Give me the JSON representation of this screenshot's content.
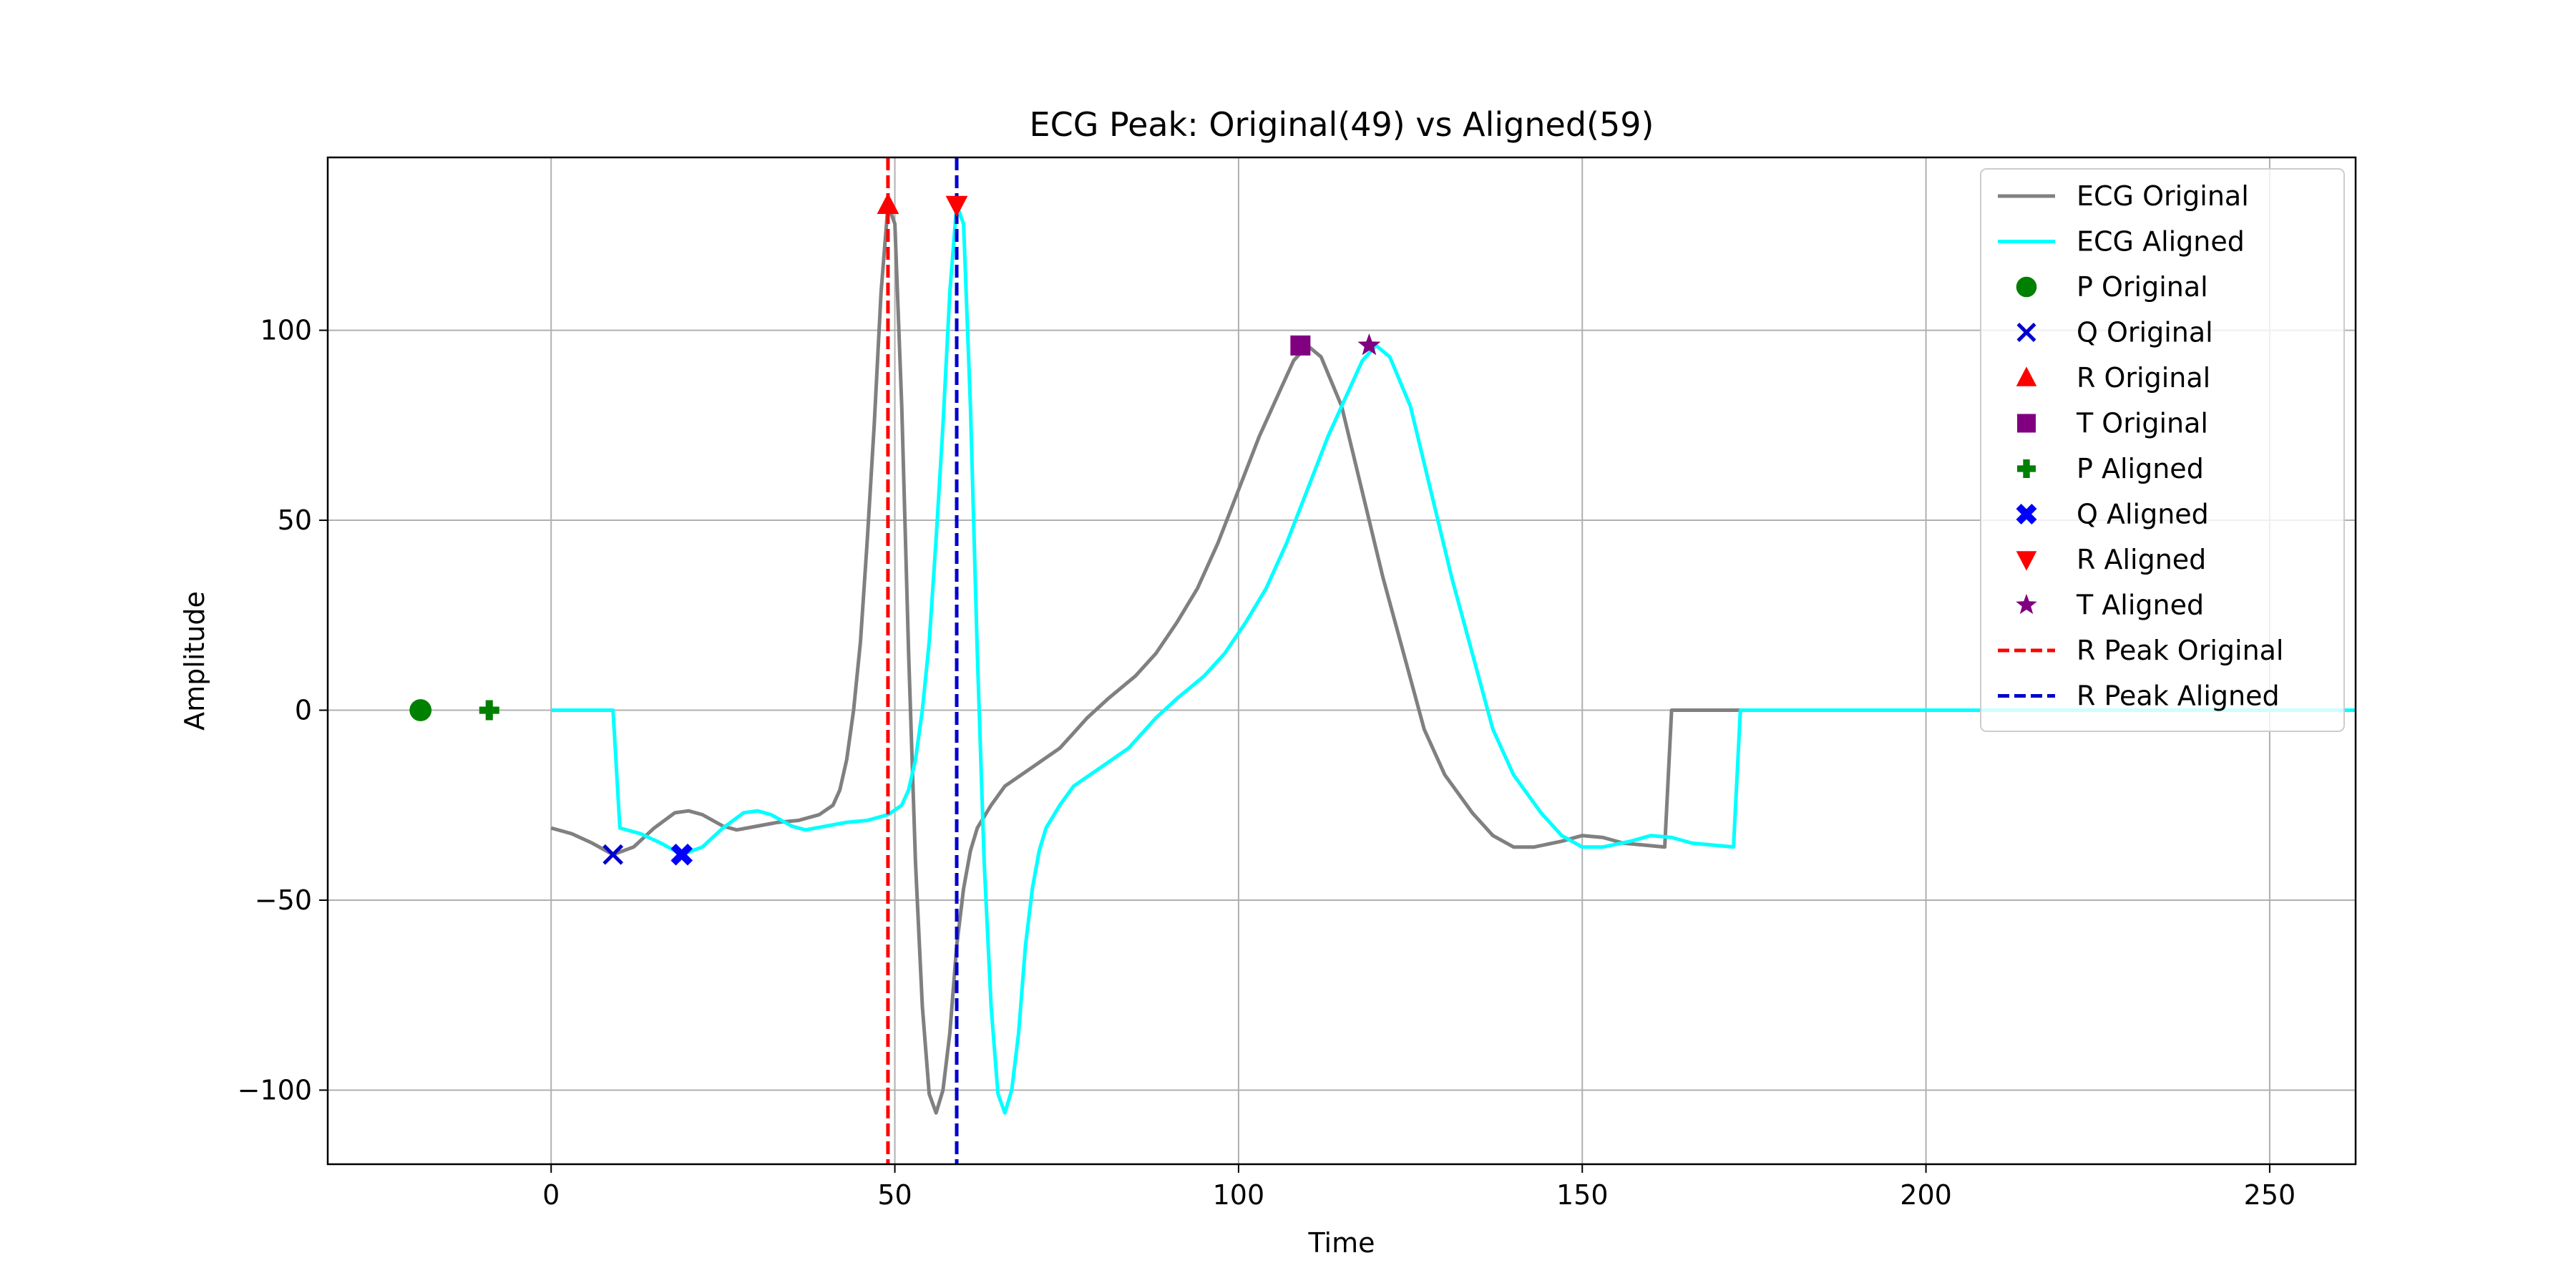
{
  "chart_data": {
    "type": "line",
    "title": "ECG Peak: Original(49) vs Aligned(59)",
    "xlabel": "Time",
    "ylabel": "Amplitude",
    "xlim": [
      -32.5,
      262.5
    ],
    "ylim": [
      -119.5,
      145.5
    ],
    "xticks": [
      0,
      50,
      100,
      150,
      200,
      250
    ],
    "yticks": [
      -100,
      -50,
      0,
      50,
      100
    ],
    "xtick_labels": [
      "0",
      "50",
      "100",
      "150",
      "200",
      "250"
    ],
    "ytick_labels": [
      "−100",
      "−50",
      "0",
      "50",
      "100"
    ],
    "grid": true,
    "legend_position": "top-right",
    "series": [
      {
        "name": "ECG Original",
        "kind": "line",
        "color": "#808080",
        "dash": "solid",
        "points": [
          [
            0,
            -31
          ],
          [
            3,
            -32.5
          ],
          [
            6,
            -35
          ],
          [
            9,
            -38
          ],
          [
            12,
            -36
          ],
          [
            15,
            -31
          ],
          [
            18,
            -27
          ],
          [
            20,
            -26.5
          ],
          [
            22,
            -27.5
          ],
          [
            25,
            -30.5
          ],
          [
            27,
            -31.5
          ],
          [
            30,
            -30.5
          ],
          [
            33,
            -29.5
          ],
          [
            36,
            -29
          ],
          [
            39,
            -27.5
          ],
          [
            41,
            -25
          ],
          [
            42,
            -21
          ],
          [
            43,
            -13
          ],
          [
            44,
            0
          ],
          [
            45,
            18
          ],
          [
            46,
            45
          ],
          [
            47,
            75
          ],
          [
            48,
            110
          ],
          [
            49,
            133
          ],
          [
            50,
            128
          ],
          [
            51,
            80
          ],
          [
            52,
            15
          ],
          [
            53,
            -40
          ],
          [
            54,
            -78
          ],
          [
            55,
            -101
          ],
          [
            56,
            -106
          ],
          [
            57,
            -100
          ],
          [
            58,
            -85
          ],
          [
            59,
            -62
          ],
          [
            60,
            -47
          ],
          [
            61,
            -37
          ],
          [
            62,
            -31
          ],
          [
            64,
            -25
          ],
          [
            66,
            -20
          ],
          [
            70,
            -15
          ],
          [
            74,
            -10
          ],
          [
            76,
            -6
          ],
          [
            78,
            -2
          ],
          [
            81,
            3
          ],
          [
            85,
            9
          ],
          [
            88,
            15
          ],
          [
            91,
            23
          ],
          [
            94,
            32
          ],
          [
            97,
            44
          ],
          [
            100,
            58
          ],
          [
            103,
            72
          ],
          [
            106,
            84
          ],
          [
            108,
            92
          ],
          [
            110,
            96
          ],
          [
            112,
            93
          ],
          [
            115,
            80
          ],
          [
            117,
            65
          ],
          [
            119,
            50
          ],
          [
            121,
            35
          ],
          [
            124,
            15
          ],
          [
            127,
            -5
          ],
          [
            130,
            -17
          ],
          [
            134,
            -27
          ],
          [
            137,
            -33
          ],
          [
            140,
            -36
          ],
          [
            143,
            -36
          ],
          [
            147,
            -34.5
          ],
          [
            150,
            -33
          ],
          [
            153,
            -33.5
          ],
          [
            156,
            -35
          ],
          [
            159,
            -35.5
          ],
          [
            162,
            -36
          ],
          [
            163,
            0
          ],
          [
            173,
            0
          ]
        ]
      },
      {
        "name": "ECG Aligned",
        "kind": "line",
        "color": "#00ffff",
        "dash": "solid",
        "points": [
          [
            0,
            0
          ],
          [
            9,
            0
          ],
          [
            10,
            -31
          ],
          [
            13,
            -32.5
          ],
          [
            16,
            -35
          ],
          [
            19,
            -38
          ],
          [
            22,
            -36
          ],
          [
            25,
            -31
          ],
          [
            28,
            -27
          ],
          [
            30,
            -26.5
          ],
          [
            32,
            -27.5
          ],
          [
            35,
            -30.5
          ],
          [
            37,
            -31.5
          ],
          [
            40,
            -30.5
          ],
          [
            43,
            -29.5
          ],
          [
            46,
            -29
          ],
          [
            49,
            -27.5
          ],
          [
            51,
            -25
          ],
          [
            52,
            -21
          ],
          [
            53,
            -13
          ],
          [
            54,
            0
          ],
          [
            55,
            18
          ],
          [
            56,
            45
          ],
          [
            57,
            75
          ],
          [
            58,
            110
          ],
          [
            59,
            133
          ],
          [
            60,
            128
          ],
          [
            61,
            80
          ],
          [
            62,
            15
          ],
          [
            63,
            -40
          ],
          [
            64,
            -78
          ],
          [
            65,
            -101
          ],
          [
            66,
            -106
          ],
          [
            67,
            -100
          ],
          [
            68,
            -85
          ],
          [
            69,
            -62
          ],
          [
            70,
            -47
          ],
          [
            71,
            -37
          ],
          [
            72,
            -31
          ],
          [
            74,
            -25
          ],
          [
            76,
            -20
          ],
          [
            80,
            -15
          ],
          [
            84,
            -10
          ],
          [
            86,
            -6
          ],
          [
            88,
            -2
          ],
          [
            91,
            3
          ],
          [
            95,
            9
          ],
          [
            98,
            15
          ],
          [
            101,
            23
          ],
          [
            104,
            32
          ],
          [
            107,
            44
          ],
          [
            110,
            58
          ],
          [
            113,
            72
          ],
          [
            116,
            84
          ],
          [
            118,
            92
          ],
          [
            120,
            96
          ],
          [
            122,
            93
          ],
          [
            125,
            80
          ],
          [
            127,
            65
          ],
          [
            129,
            50
          ],
          [
            131,
            35
          ],
          [
            134,
            15
          ],
          [
            137,
            -5
          ],
          [
            140,
            -17
          ],
          [
            144,
            -27
          ],
          [
            147,
            -33
          ],
          [
            150,
            -36
          ],
          [
            153,
            -36
          ],
          [
            157,
            -34.5
          ],
          [
            160,
            -33
          ],
          [
            163,
            -33.5
          ],
          [
            166,
            -35
          ],
          [
            169,
            -35.5
          ],
          [
            172,
            -36
          ],
          [
            173,
            0
          ],
          [
            263,
            0
          ]
        ]
      },
      {
        "name": "P Original",
        "kind": "marker",
        "marker": "circle",
        "color": "#008000",
        "points": [
          [
            -19,
            0
          ]
        ]
      },
      {
        "name": "Q Original",
        "kind": "marker",
        "marker": "x",
        "color": "#0000cd",
        "points": [
          [
            9,
            -38
          ]
        ]
      },
      {
        "name": "R Original",
        "kind": "marker",
        "marker": "triangle-up",
        "color": "#ff0000",
        "points": [
          [
            49,
            133
          ]
        ]
      },
      {
        "name": "T Original",
        "kind": "marker",
        "marker": "square",
        "color": "#800080",
        "points": [
          [
            109,
            96
          ]
        ]
      },
      {
        "name": "P Aligned",
        "kind": "marker",
        "marker": "plus-filled",
        "color": "#008000",
        "points": [
          [
            -9,
            0
          ]
        ]
      },
      {
        "name": "Q Aligned",
        "kind": "marker",
        "marker": "x-filled",
        "color": "#0000ff",
        "points": [
          [
            19,
            -38
          ]
        ]
      },
      {
        "name": "R Aligned",
        "kind": "marker",
        "marker": "triangle-down",
        "color": "#ff0000",
        "points": [
          [
            59,
            133
          ]
        ]
      },
      {
        "name": "T Aligned",
        "kind": "marker",
        "marker": "star",
        "color": "#800080",
        "points": [
          [
            119,
            96
          ]
        ]
      },
      {
        "name": "R Peak Original",
        "kind": "vline",
        "color": "#ff0000",
        "dash": "dashed",
        "x": 49
      },
      {
        "name": "R Peak Aligned",
        "kind": "vline",
        "color": "#0000cd",
        "dash": "dashed",
        "x": 59
      }
    ]
  }
}
